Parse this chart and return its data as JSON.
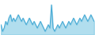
{
  "values": [
    6,
    2,
    4,
    8,
    6,
    10,
    12,
    8,
    10,
    8,
    10,
    12,
    10,
    8,
    10,
    8,
    6,
    8,
    10,
    8,
    6,
    8,
    6,
    4,
    6,
    8,
    6,
    4,
    2,
    4,
    6,
    4,
    18,
    4,
    2,
    4,
    6,
    4,
    6,
    8,
    6,
    4,
    6,
    8,
    6,
    8,
    10,
    8,
    6,
    8,
    10,
    8,
    10,
    12,
    10,
    8,
    10,
    12,
    10,
    8
  ],
  "line_color": "#4bacd6",
  "fill_color": "#7ec8e3",
  "fill_alpha": 0.6,
  "background_color": "#ffffff",
  "linewidth": 0.8
}
